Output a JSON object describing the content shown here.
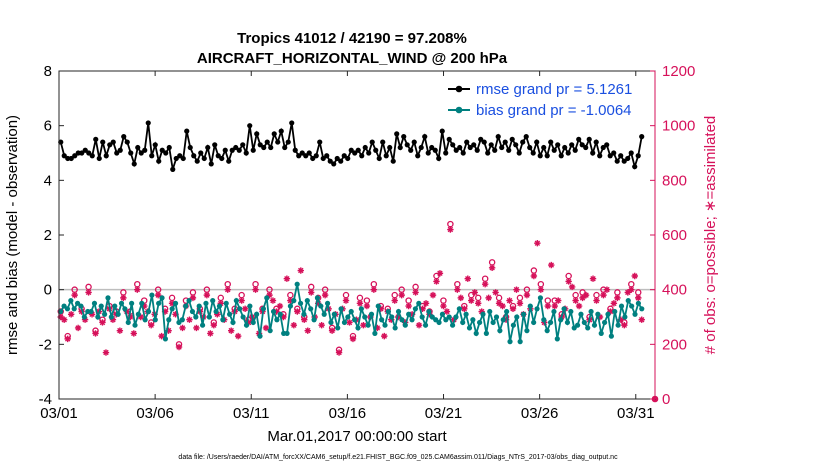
{
  "chart_data": {
    "type": "line",
    "title_line1": "Tropics 41012 / 42190 = 97.208%",
    "title_line2": "AIRCRAFT_HORIZONTAL_WIND @ 200 hPa",
    "xlabel": "Mar.01,2017 00:00:00 start",
    "ylabel_left": "rmse and bias (model - observation)",
    "ylabel_right": "# of obs: o=possible; ∗=assimilated",
    "x_tick_labels": [
      "03/01",
      "03/06",
      "03/11",
      "03/16",
      "03/21",
      "03/26",
      "03/31"
    ],
    "x_tick_days": [
      1,
      6,
      11,
      16,
      21,
      26,
      31
    ],
    "xlim": [
      1,
      32
    ],
    "ylim_left": [
      -4,
      8
    ],
    "y_left_ticks": [
      -4,
      -2,
      0,
      2,
      4,
      6,
      8
    ],
    "ylim_right": [
      0,
      1200
    ],
    "y_right_ticks": [
      0,
      200,
      400,
      600,
      800,
      1000,
      1200
    ],
    "zero_line": true,
    "footer": "data file: /Users/raeder/DAI/ATM_forcXX/CAM6_setup/f.e21.FHIST_BGC.f09_025.CAM6assim.011/Diags_NTrS_2017-03/obs_diag_output.nc",
    "legend_position": "top-right",
    "colors": {
      "rmse": "#000000",
      "bias": "#008080",
      "obs": "#d6115a",
      "zero": "#bdbdbd",
      "legend_text": "#1a4fe0"
    },
    "series": [
      {
        "name": "rmse grand pr = 5.1261",
        "axis": "left",
        "values": [
          5.4,
          4.9,
          4.8,
          4.8,
          4.9,
          5,
          5,
          5.1,
          5,
          4.9,
          5.5,
          4.8,
          5.4,
          4.9,
          5.3,
          5.4,
          5,
          5.1,
          5.6,
          5.4,
          5,
          4.6,
          5.2,
          5,
          5.1,
          6.1,
          4.9,
          5.3,
          4.7,
          5.1,
          5,
          5.2,
          4.4,
          4.8,
          4.9,
          4.8,
          5.8,
          5.2,
          4.9,
          4.7,
          5,
          4.8,
          5.2,
          4.6,
          5.3,
          4.9,
          4.8,
          5.1,
          4.7,
          5.1,
          5.2,
          5.1,
          5.3,
          5,
          6.0,
          5.1,
          5.7,
          5.3,
          5.2,
          5.4,
          5.2,
          5.7,
          5.4,
          5.8,
          5.2,
          5.4,
          6.1,
          5.1,
          4.9,
          5,
          4.9,
          5,
          4.8,
          4.9,
          5.4,
          4.8,
          4.9,
          4.7,
          4.6,
          4.8,
          4.7,
          4.9,
          4.8,
          5.1,
          5,
          5.1,
          4.9,
          5.2,
          5,
          5.4,
          5.1,
          4.8,
          5.4,
          4.9,
          5.2,
          4.7,
          5.7,
          5.2,
          5.6,
          5.3,
          5.1,
          5.4,
          4.9,
          5.2,
          5.6,
          5,
          5.2,
          5.1,
          4.8,
          5.8,
          5,
          5.5,
          5.3,
          5.1,
          5.2,
          5,
          5.4,
          5.2,
          5.3,
          5.1,
          5.5,
          5.4,
          5,
          5.3,
          5.1,
          5.6,
          5.2,
          5.4,
          5.1,
          5.5,
          5.3,
          5,
          5.4,
          5.6,
          5.2,
          5,
          5.4,
          4.9,
          5.2,
          4.9,
          5.4,
          5.1,
          5.3,
          4.9,
          5.2,
          5,
          5.3,
          5.1,
          5.5,
          5.3,
          5.2,
          5.5,
          5.0,
          5.4,
          4.9,
          5.2,
          5.3,
          4.9,
          5.0,
          4.7,
          4.9,
          4.7,
          4.8,
          5.0,
          4.5,
          4.9,
          5.6
        ]
      },
      {
        "name": "bias grand pr = -1.0064",
        "axis": "left",
        "values": [
          -0.8,
          -0.6,
          -0.7,
          -0.4,
          -0.7,
          -0.5,
          -0.6,
          -1.0,
          -0.8,
          -0.8,
          -0.5,
          -1.0,
          -0.6,
          -0.9,
          -0.3,
          -1.0,
          -0.6,
          -0.9,
          -0.5,
          -0.7,
          -1.2,
          -0.5,
          -1.3,
          -0.9,
          -0.5,
          -1.1,
          -0.8,
          -0.2,
          -1.1,
          -0.5,
          -0.3,
          -1.8,
          -1.1,
          -0.7,
          -0.5,
          -1.2,
          -1.1,
          -0.6,
          -0.4,
          -0.8,
          -1.0,
          -0.6,
          -1.3,
          -0.5,
          -1.0,
          -0.4,
          -0.8,
          -0.6,
          -1.1,
          -0.5,
          -0.9,
          -1.2,
          -0.4,
          -0.7,
          -1.0,
          -1.3,
          -0.6,
          -1.2,
          -0.9,
          -1.7,
          -0.7,
          -0.3,
          -1.5,
          -0.8,
          -1.1,
          -0.9,
          -1.6,
          -1.6,
          -0.6,
          -0.4,
          0.2,
          -0.5,
          -0.9,
          -0.4,
          -0.7,
          -1.1,
          -0.3,
          -0.6,
          -0.9,
          -0.5,
          -1.2,
          -0.9,
          -1.4,
          -0.7,
          -1.2,
          -1.0,
          -0.8,
          -1.1,
          -1.4,
          -0.7,
          -1.0,
          -1.3,
          -0.9,
          -1.6,
          -0.6,
          -1.1,
          -1.3,
          -0.8,
          -1.0,
          -1.4,
          -0.8,
          -1.1,
          -1.3,
          -0.9,
          -1.1,
          -0.7,
          -0.5,
          -1.0,
          -1.3,
          -0.8,
          -1.0,
          -1.1,
          -1.2,
          -0.9,
          -1.1,
          -1.0,
          -1.3,
          -1.0,
          -0.7,
          -1.2,
          -0.9,
          -1.4,
          -1.1,
          -1.6,
          -1.2,
          -0.9,
          -1.6,
          -0.8,
          -1.2,
          -1.0,
          -1.5,
          -1.1,
          -0.8,
          -1.9,
          -1.3,
          -1.0,
          -1.9,
          -0.9,
          -1.5,
          -0.6,
          -1.2,
          -0.7,
          -0.3,
          -1.1,
          -1.5,
          -1.2,
          -0.8,
          -1.8,
          -1.1,
          -0.7,
          -1.2,
          -0.8,
          -1.4,
          -1.3,
          -0.9,
          -1.2,
          -1.4,
          -0.8,
          -1.3,
          -0.9,
          -1.6,
          -1.2,
          -0.9,
          -1.7,
          -0.8,
          -1.3,
          -0.6,
          -1.0,
          -0.4,
          -0.6,
          -0.9,
          -0.5,
          -0.7
        ]
      },
      {
        "name": "possible",
        "axis": "right",
        "values": [
          320,
          310,
          230,
          320,
          400,
          270,
          330,
          300,
          410,
          320,
          250,
          330,
          290,
          180,
          340,
          300,
          320,
          260,
          390,
          330,
          320,
          250,
          420,
          310,
          360,
          330,
          280,
          320,
          400,
          240,
          330,
          260,
          370,
          320,
          200,
          270,
          360,
          300,
          390,
          270,
          330,
          310,
          400,
          250,
          280,
          320,
          370,
          300,
          420,
          260,
          330,
          240,
          380,
          350,
          290,
          310,
          420,
          250,
          330,
          270,
          400,
          380,
          330,
          360,
          310,
          460,
          380,
          280,
          330,
          490,
          300,
          260,
          410,
          310,
          370,
          280,
          400,
          340,
          260,
          320,
          180,
          340,
          380,
          290,
          230,
          300,
          370,
          280,
          360,
          310,
          420,
          270,
          340,
          240,
          330,
          300,
          380,
          310,
          400,
          290,
          360,
          320,
          410,
          280,
          340,
          370,
          320,
          400,
          450,
          480,
          360,
          330,
          640,
          300,
          420,
          390,
          340,
          460,
          380,
          410,
          370,
          330,
          440,
          390,
          500,
          410,
          370,
          360,
          300,
          380,
          340,
          420,
          370,
          320,
          400,
          340,
          470,
          590,
          420,
          290,
          360,
          510,
          360,
          380,
          310,
          340,
          450,
          430,
          380,
          350,
          390,
          400,
          300,
          460,
          380,
          310,
          400,
          420,
          330,
          370,
          390,
          300,
          280,
          410,
          420,
          470,
          390,
          300
        ]
      },
      {
        "name": "assimilated",
        "axis": "right",
        "values": [
          300,
          290,
          220,
          310,
          380,
          260,
          320,
          290,
          390,
          310,
          240,
          320,
          280,
          170,
          330,
          290,
          310,
          250,
          370,
          320,
          300,
          240,
          400,
          300,
          340,
          320,
          270,
          310,
          380,
          230,
          320,
          250,
          350,
          310,
          190,
          260,
          340,
          290,
          370,
          260,
          320,
          300,
          380,
          240,
          270,
          310,
          350,
          290,
          400,
          250,
          320,
          230,
          360,
          330,
          280,
          300,
          400,
          240,
          320,
          260,
          380,
          360,
          320,
          340,
          300,
          440,
          360,
          270,
          320,
          470,
          290,
          250,
          390,
          300,
          350,
          270,
          380,
          330,
          250,
          310,
          170,
          330,
          360,
          280,
          220,
          290,
          350,
          270,
          340,
          300,
          400,
          260,
          330,
          230,
          320,
          290,
          360,
          300,
          380,
          280,
          340,
          310,
          390,
          270,
          330,
          350,
          310,
          380,
          430,
          460,
          340,
          320,
          620,
          290,
          400,
          370,
          330,
          440,
          360,
          390,
          350,
          320,
          420,
          370,
          480,
          390,
          350,
          340,
          290,
          360,
          330,
          400,
          350,
          310,
          380,
          330,
          450,
          570,
          400,
          280,
          340,
          490,
          340,
          360,
          300,
          330,
          430,
          410,
          360,
          340,
          370,
          380,
          290,
          440,
          360,
          300,
          380,
          400,
          320,
          350,
          370,
          290,
          270,
          390,
          400,
          450,
          370,
          290
        ]
      }
    ]
  }
}
